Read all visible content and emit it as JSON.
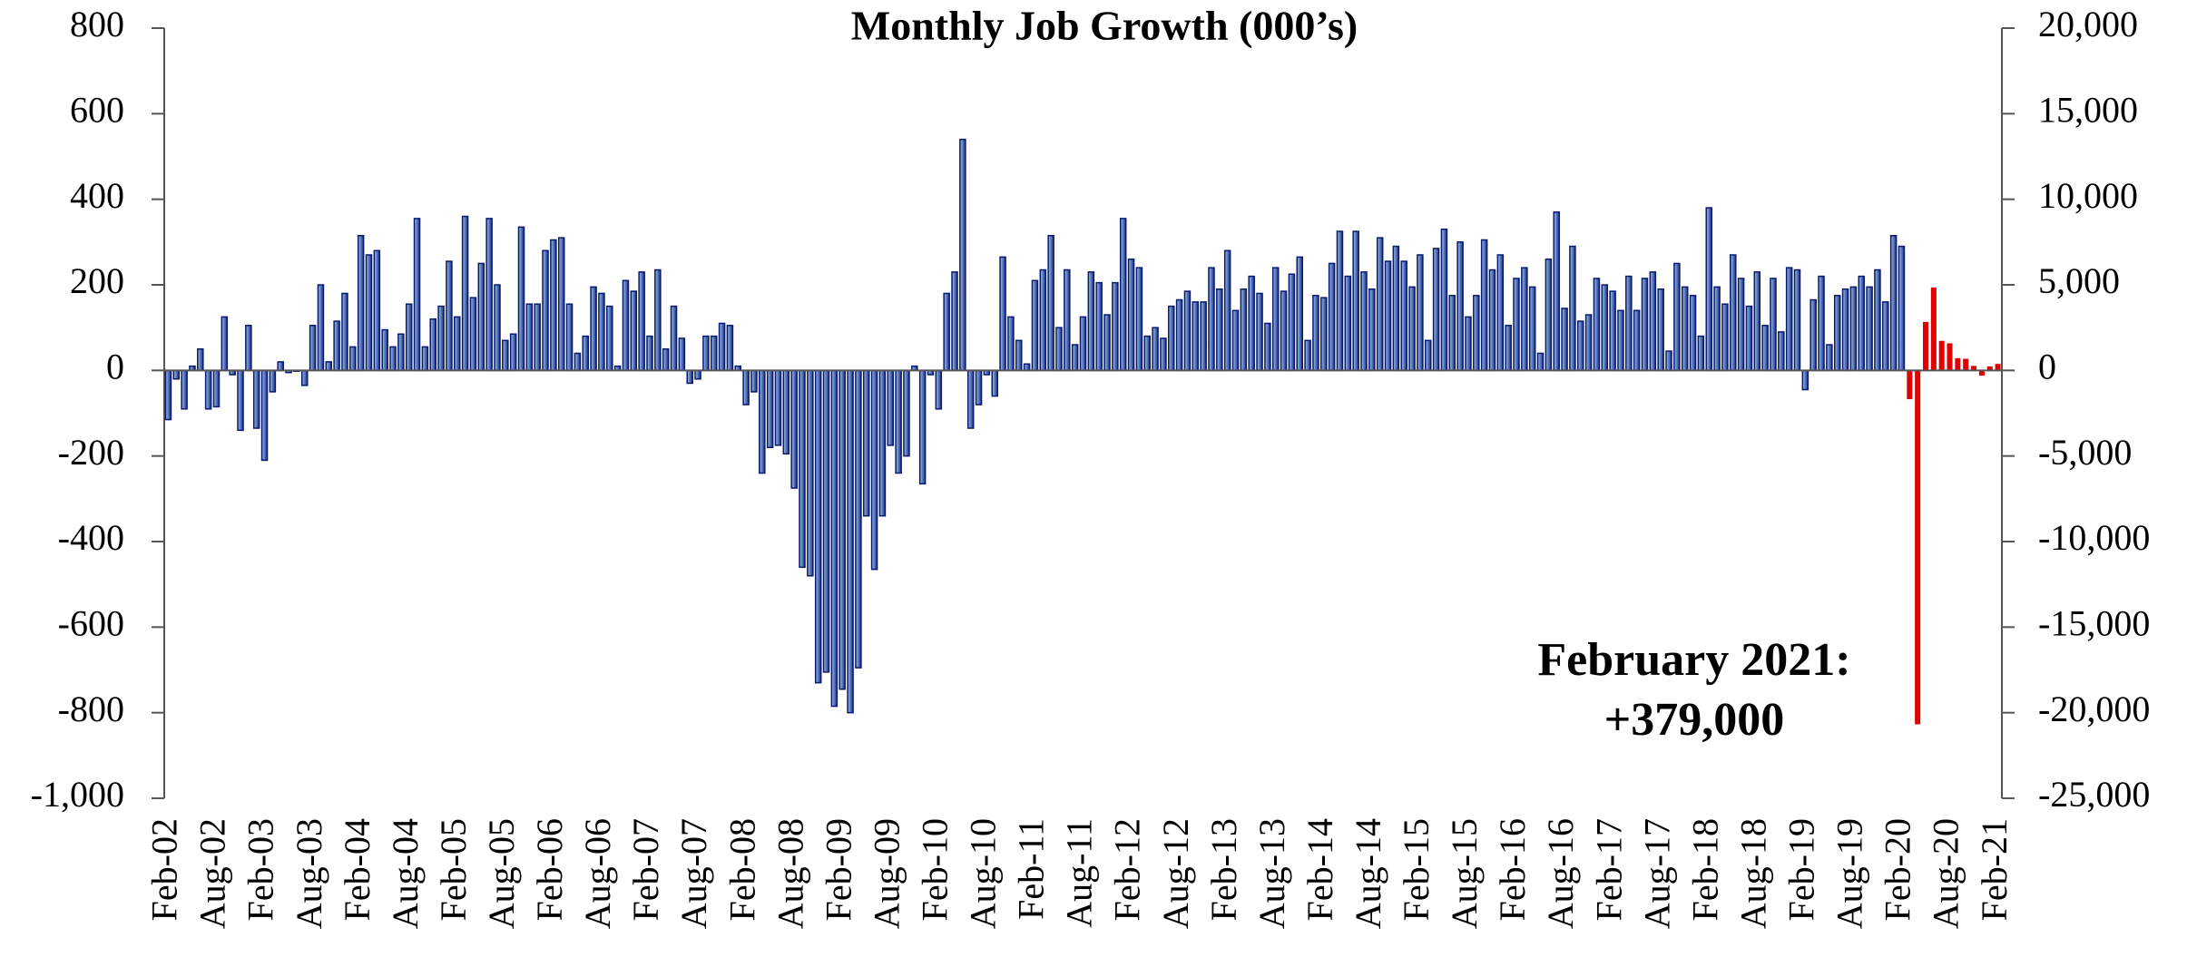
{
  "chart_data": {
    "type": "bar",
    "title": "Monthly Job Growth (000’s)",
    "annotations": [
      "February 2021:",
      "+379,000"
    ],
    "categories": [
      "Feb-02",
      null,
      null,
      null,
      null,
      null,
      "Aug-02",
      null,
      null,
      null,
      null,
      null,
      "Feb-03",
      null,
      null,
      null,
      null,
      null,
      "Aug-03",
      null,
      null,
      null,
      null,
      null,
      "Feb-04",
      null,
      null,
      null,
      null,
      null,
      "Aug-04",
      null,
      null,
      null,
      null,
      null,
      "Feb-05",
      null,
      null,
      null,
      null,
      null,
      "Aug-05",
      null,
      null,
      null,
      null,
      null,
      "Feb-06",
      null,
      null,
      null,
      null,
      null,
      "Aug-06",
      null,
      null,
      null,
      null,
      null,
      "Feb-07",
      null,
      null,
      null,
      null,
      null,
      "Aug-07",
      null,
      null,
      null,
      null,
      null,
      "Feb-08",
      null,
      null,
      null,
      null,
      null,
      "Aug-08",
      null,
      null,
      null,
      null,
      null,
      "Feb-09",
      null,
      null,
      null,
      null,
      null,
      "Aug-09",
      null,
      null,
      null,
      null,
      null,
      "Feb-10",
      null,
      null,
      null,
      null,
      null,
      "Aug-10",
      null,
      null,
      null,
      null,
      null,
      "Feb-11",
      null,
      null,
      null,
      null,
      null,
      "Aug-11",
      null,
      null,
      null,
      null,
      null,
      "Feb-12",
      null,
      null,
      null,
      null,
      null,
      "Aug-12",
      null,
      null,
      null,
      null,
      null,
      "Feb-13",
      null,
      null,
      null,
      null,
      null,
      "Aug-13",
      null,
      null,
      null,
      null,
      null,
      "Feb-14",
      null,
      null,
      null,
      null,
      null,
      "Aug-14",
      null,
      null,
      null,
      null,
      null,
      "Feb-15",
      null,
      null,
      null,
      null,
      null,
      "Aug-15",
      null,
      null,
      null,
      null,
      null,
      "Feb-16",
      null,
      null,
      null,
      null,
      null,
      "Aug-16",
      null,
      null,
      null,
      null,
      null,
      "Feb-17",
      null,
      null,
      null,
      null,
      null,
      "Aug-17",
      null,
      null,
      null,
      null,
      null,
      "Feb-18",
      null,
      null,
      null,
      null,
      null,
      "Aug-18",
      null,
      null,
      null,
      null,
      null,
      "Feb-19",
      null,
      null,
      null,
      null,
      null,
      "Aug-19",
      null,
      null,
      null,
      null,
      null,
      "Feb-20",
      null,
      null,
      null,
      null,
      null,
      "Aug-20",
      null,
      null,
      null,
      null,
      null,
      "Feb-21"
    ],
    "series": [
      {
        "color": "#0a1a6e",
        "values": [
          -115,
          -20,
          -90,
          10,
          50,
          -90,
          -85,
          125,
          -10,
          -140,
          105,
          -135,
          -210,
          -50,
          20,
          -5,
          -2,
          -35,
          105,
          200,
          20,
          115,
          180,
          55,
          315,
          270,
          280,
          95,
          55,
          85,
          155,
          355,
          55,
          120,
          150,
          255,
          125,
          360,
          170,
          250,
          355,
          200,
          70,
          85,
          335,
          155,
          155,
          280,
          305,
          310,
          155,
          40,
          80,
          195,
          180,
          150,
          10,
          210,
          185,
          230,
          80,
          235,
          50,
          150,
          75,
          -30,
          -20,
          80,
          80,
          110,
          105,
          10,
          -80,
          -50,
          -240,
          -180,
          -175,
          -195,
          -275,
          -460,
          -480,
          -730,
          -705,
          -785,
          -745,
          -800,
          -695,
          -340,
          -465,
          -340,
          -175,
          -240,
          -200,
          10,
          -265,
          -10,
          -90,
          180,
          230,
          540,
          -135,
          -80,
          -10,
          -60,
          265,
          125,
          70,
          15,
          210,
          235,
          315,
          100,
          235,
          60,
          125,
          230,
          205,
          130,
          205,
          355,
          260,
          240,
          80,
          100,
          75,
          150,
          165,
          185,
          160,
          160,
          240,
          190,
          280,
          140,
          190,
          220,
          180,
          110,
          240,
          185,
          225,
          265,
          70,
          175,
          170,
          250,
          325,
          220,
          325,
          230,
          190,
          310,
          255,
          290,
          255,
          195,
          270,
          70,
          285,
          330,
          175,
          300,
          125,
          175,
          305,
          235,
          270,
          105,
          215,
          240,
          195,
          40,
          260,
          370,
          145,
          290,
          115,
          130,
          215,
          200,
          185,
          140,
          220,
          140,
          215,
          230,
          190,
          45,
          250,
          195,
          175,
          80,
          380,
          195,
          155,
          270,
          215,
          150,
          230,
          105,
          215,
          90,
          240,
          235,
          -45,
          165,
          220,
          60,
          175,
          190,
          195,
          220,
          195,
          235,
          160,
          315,
          290,
          null,
          null,
          null,
          null,
          null,
          null,
          null,
          null,
          null,
          null,
          null,
          null
        ]
      },
      {
        "color": "#e00000",
        "axis": "y2",
        "values": [
          null,
          null,
          null,
          null,
          null,
          null,
          null,
          null,
          null,
          null,
          null,
          null,
          null,
          null,
          null,
          null,
          null,
          null,
          null,
          null,
          null,
          null,
          null,
          null,
          null,
          null,
          null,
          null,
          null,
          null,
          null,
          null,
          null,
          null,
          null,
          null,
          null,
          null,
          null,
          null,
          null,
          null,
          null,
          null,
          null,
          null,
          null,
          null,
          null,
          null,
          null,
          null,
          null,
          null,
          null,
          null,
          null,
          null,
          null,
          null,
          null,
          null,
          null,
          null,
          null,
          null,
          null,
          null,
          null,
          null,
          null,
          null,
          null,
          null,
          null,
          null,
          null,
          null,
          null,
          null,
          null,
          null,
          null,
          null,
          null,
          null,
          null,
          null,
          null,
          null,
          null,
          null,
          null,
          null,
          null,
          null,
          null,
          null,
          null,
          null,
          null,
          null,
          null,
          null,
          null,
          null,
          null,
          null,
          null,
          null,
          null,
          null,
          null,
          null,
          null,
          null,
          null,
          null,
          null,
          null,
          null,
          null,
          null,
          null,
          null,
          null,
          null,
          null,
          null,
          null,
          null,
          null,
          null,
          null,
          null,
          null,
          null,
          null,
          null,
          null,
          null,
          null,
          null,
          null,
          null,
          null,
          null,
          null,
          null,
          null,
          null,
          null,
          null,
          null,
          null,
          null,
          null,
          null,
          null,
          null,
          null,
          null,
          null,
          null,
          null,
          null,
          null,
          null,
          null,
          null,
          null,
          null,
          null,
          null,
          null,
          null,
          null,
          null,
          null,
          null,
          null,
          null,
          null,
          null,
          null,
          null,
          null,
          null,
          null,
          null,
          null,
          null,
          null,
          null,
          null,
          null,
          null,
          null,
          null,
          null,
          null,
          null,
          null,
          null,
          null,
          null,
          null,
          null,
          null,
          null,
          null,
          null,
          null,
          null,
          null,
          null,
          null,
          -1683,
          -20679,
          2833,
          4846,
          1726,
          1583,
          716,
          680,
          264,
          -306,
          233,
          379
        ]
      }
    ],
    "ylim": [
      -1000,
      800
    ],
    "yticks": [
      {
        "value": -1000,
        "label": "-1,000"
      },
      -800,
      -600,
      -400,
      -200,
      0,
      200,
      400,
      600,
      800
    ],
    "y2lim": [
      -25000,
      20000
    ],
    "y2ticks": [
      {
        "value": -25000,
        "label": "-25,000"
      },
      {
        "value": -20000,
        "label": "-20,000"
      },
      {
        "value": -15000,
        "label": "-15,000"
      },
      {
        "value": -10000,
        "label": "-10,000"
      },
      {
        "value": -5000,
        "label": "-5,000"
      },
      0,
      {
        "value": 5000,
        "label": "5,000"
      },
      {
        "value": 10000,
        "label": "10,000"
      },
      {
        "value": 15000,
        "label": "15,000"
      },
      {
        "value": 20000,
        "label": "20,000"
      }
    ],
    "grid": false
  }
}
